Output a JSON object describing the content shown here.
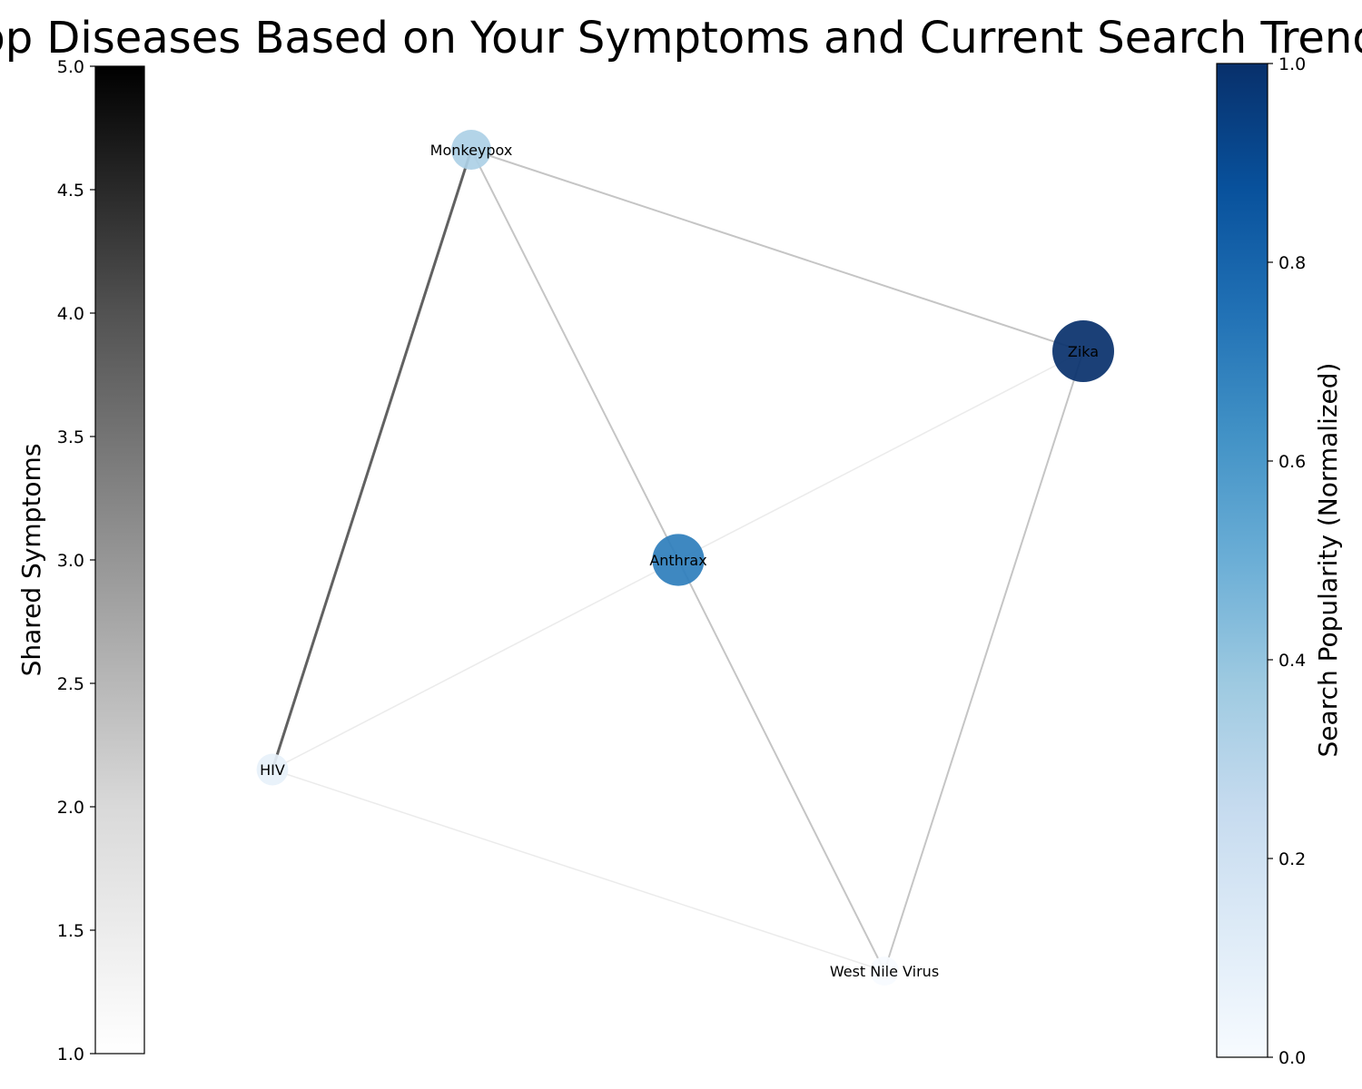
{
  "title": "Top Diseases Based on Your Symptoms and Current Search Trends",
  "colorbar_left": {
    "label": "Shared Symptoms",
    "range": [
      1.0,
      5.0
    ],
    "ticks": [
      "1.0",
      "1.5",
      "2.0",
      "2.5",
      "3.0",
      "3.5",
      "4.0",
      "4.5",
      "5.0"
    ],
    "colormap": "Greys",
    "colors": [
      "#ffffff",
      "#000000"
    ]
  },
  "colorbar_right": {
    "label": "Search Popularity (Normalized)",
    "range": [
      0.0,
      1.0
    ],
    "ticks": [
      "0.0",
      "0.2",
      "0.4",
      "0.6",
      "0.8",
      "1.0"
    ],
    "colormap": "Blues",
    "colors": [
      "#f7fbff",
      "#deebf7",
      "#c6dbef",
      "#9ecae1",
      "#6baed6",
      "#4292c6",
      "#2171b5",
      "#08519c",
      "#08306b"
    ]
  },
  "graph": {
    "nodes": [
      {
        "id": "Monkeypox",
        "label": "Monkeypox",
        "popularity": 0.33
      },
      {
        "id": "Zika",
        "label": "Zika",
        "popularity": 1.0
      },
      {
        "id": "Anthrax",
        "label": "Anthrax",
        "popularity": 0.7
      },
      {
        "id": "HIV",
        "label": "HIV",
        "popularity": 0.08
      },
      {
        "id": "West Nile Virus",
        "label": "West Nile Virus",
        "popularity": 0.0
      }
    ],
    "edges": [
      {
        "source": "Monkeypox",
        "target": "HIV",
        "shared_symptoms": 4
      },
      {
        "source": "Monkeypox",
        "target": "Zika",
        "shared_symptoms": 2
      },
      {
        "source": "Monkeypox",
        "target": "Anthrax",
        "shared_symptoms": 2
      },
      {
        "source": "Anthrax",
        "target": "West Nile Virus",
        "shared_symptoms": 2
      },
      {
        "source": "Zika",
        "target": "West Nile Virus",
        "shared_symptoms": 2
      },
      {
        "source": "Anthrax",
        "target": "Zika",
        "shared_symptoms": 1
      },
      {
        "source": "HIV",
        "target": "Anthrax",
        "shared_symptoms": 1
      },
      {
        "source": "HIV",
        "target": "West Nile Virus",
        "shared_symptoms": 1
      }
    ]
  }
}
